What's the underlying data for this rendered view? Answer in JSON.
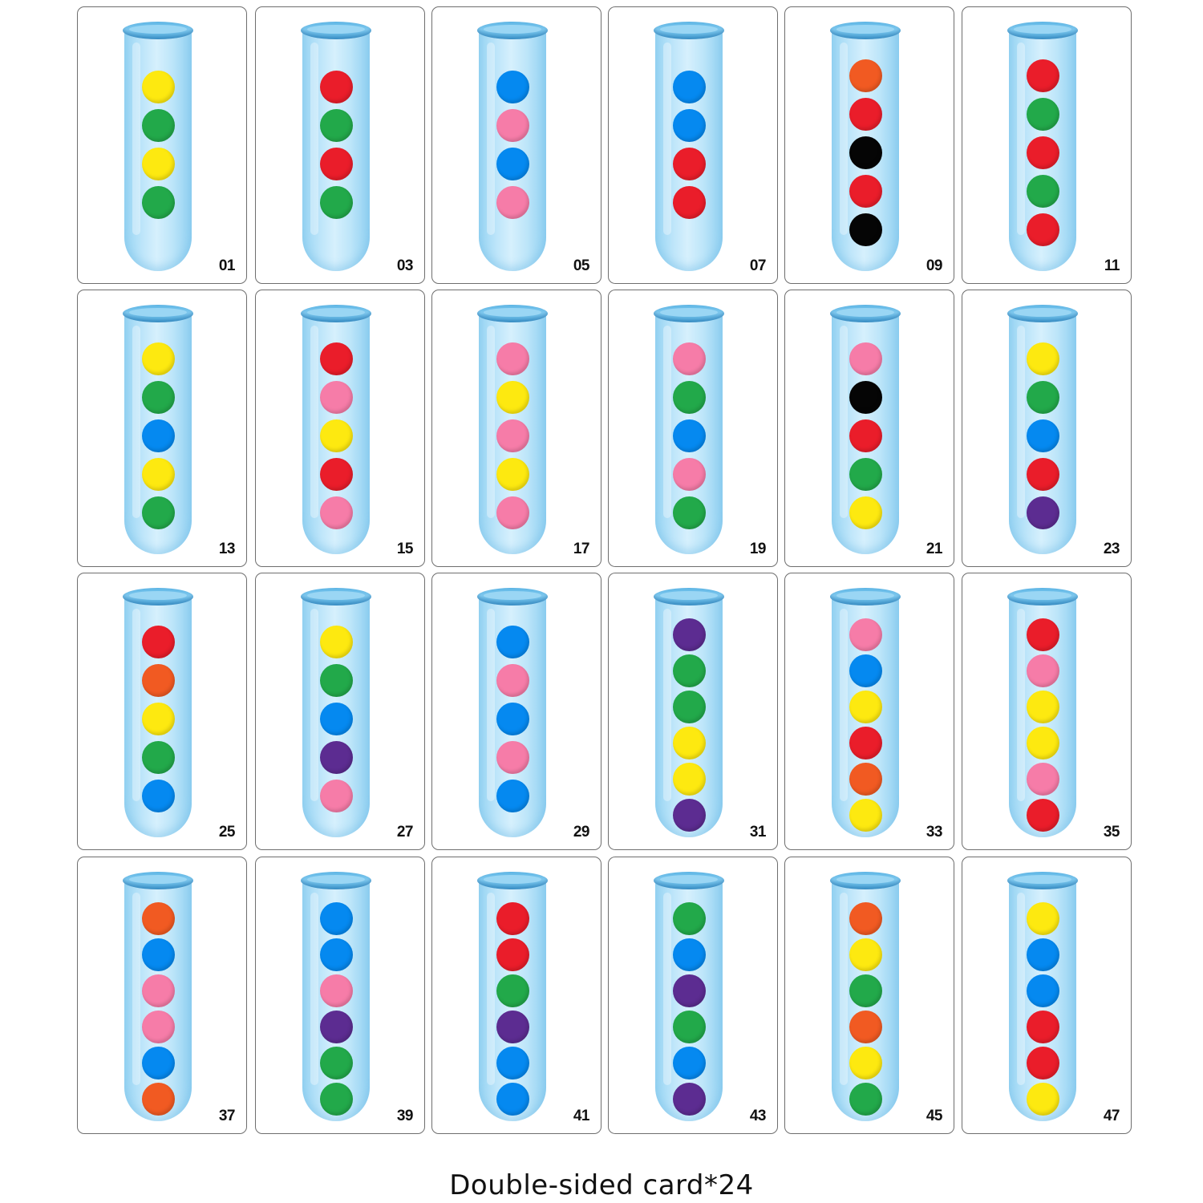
{
  "colors": {
    "yellow": "#fde910",
    "green": "#22a94a",
    "red": "#ea1d2a",
    "blue": "#0589f0",
    "pink": "#f67ca8",
    "orange": "#f15a22",
    "black": "#050505",
    "purple": "#5c2c91"
  },
  "cards": [
    {
      "number": "01",
      "balls": [
        "yellow",
        "green",
        "yellow",
        "green"
      ]
    },
    {
      "number": "03",
      "balls": [
        "red",
        "green",
        "red",
        "green"
      ]
    },
    {
      "number": "05",
      "balls": [
        "blue",
        "pink",
        "blue",
        "pink"
      ]
    },
    {
      "number": "07",
      "balls": [
        "blue",
        "blue",
        "red",
        "red"
      ]
    },
    {
      "number": "09",
      "balls": [
        "orange",
        "red",
        "black",
        "red",
        "black"
      ]
    },
    {
      "number": "11",
      "balls": [
        "red",
        "green",
        "red",
        "green",
        "red"
      ]
    },
    {
      "number": "13",
      "balls": [
        "yellow",
        "green",
        "blue",
        "yellow",
        "green"
      ]
    },
    {
      "number": "15",
      "balls": [
        "red",
        "pink",
        "yellow",
        "red",
        "pink"
      ]
    },
    {
      "number": "17",
      "balls": [
        "pink",
        "yellow",
        "pink",
        "yellow",
        "pink"
      ]
    },
    {
      "number": "19",
      "balls": [
        "pink",
        "green",
        "blue",
        "pink",
        "green"
      ]
    },
    {
      "number": "21",
      "balls": [
        "pink",
        "black",
        "red",
        "green",
        "yellow"
      ]
    },
    {
      "number": "23",
      "balls": [
        "yellow",
        "green",
        "blue",
        "red",
        "purple"
      ]
    },
    {
      "number": "25",
      "balls": [
        "red",
        "orange",
        "yellow",
        "green",
        "blue"
      ]
    },
    {
      "number": "27",
      "balls": [
        "yellow",
        "green",
        "blue",
        "purple",
        "pink"
      ]
    },
    {
      "number": "29",
      "balls": [
        "blue",
        "pink",
        "blue",
        "pink",
        "blue"
      ]
    },
    {
      "number": "31",
      "balls": [
        "purple",
        "green",
        "green",
        "yellow",
        "yellow",
        "purple"
      ]
    },
    {
      "number": "33",
      "balls": [
        "pink",
        "blue",
        "yellow",
        "red",
        "orange",
        "yellow"
      ]
    },
    {
      "number": "35",
      "balls": [
        "red",
        "pink",
        "yellow",
        "yellow",
        "pink",
        "red"
      ]
    },
    {
      "number": "37",
      "balls": [
        "orange",
        "blue",
        "pink",
        "pink",
        "blue",
        "orange"
      ]
    },
    {
      "number": "39",
      "balls": [
        "blue",
        "blue",
        "pink",
        "purple",
        "green",
        "green"
      ]
    },
    {
      "number": "41",
      "balls": [
        "red",
        "red",
        "green",
        "purple",
        "blue",
        "blue"
      ]
    },
    {
      "number": "43",
      "balls": [
        "green",
        "blue",
        "purple",
        "green",
        "blue",
        "purple"
      ]
    },
    {
      "number": "45",
      "balls": [
        "orange",
        "yellow",
        "green",
        "orange",
        "yellow",
        "green"
      ]
    },
    {
      "number": "47",
      "balls": [
        "yellow",
        "blue",
        "blue",
        "red",
        "red",
        "yellow"
      ]
    }
  ],
  "footer": {
    "text": "Double-sided card*24"
  }
}
